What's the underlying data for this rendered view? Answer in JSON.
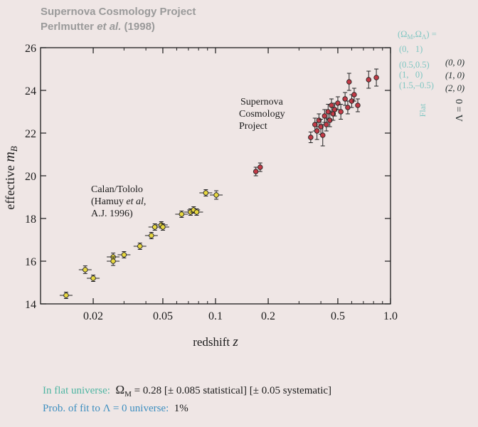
{
  "header": {
    "title": "Supernova Cosmology Project",
    "subtitle_prefix": "Perlmutter ",
    "subtitle_italic": "et al.",
    "subtitle_suffix": " (1998)"
  },
  "colors": {
    "flat": "#5fb9a6",
    "lambda_zero": "#1f4a4a",
    "scp_points": "#c23a46",
    "calan_points": "#e8d840",
    "frame": "#1b1b1b"
  },
  "chart_data": {
    "type": "scatter",
    "x_scale": "log",
    "xlabel_text": "redshift",
    "xlabel_symbol": "z",
    "ylabel_text": "effective",
    "ylabel_symbol": "m",
    "ylabel_sub": "B",
    "xlim": [
      0.01,
      1.0
    ],
    "ylim": [
      14,
      26
    ],
    "xticks": [
      {
        "v": 0.02,
        "label": "0.02"
      },
      {
        "v": 0.05,
        "label": "0.05"
      },
      {
        "v": 0.1,
        "label": "0.1"
      },
      {
        "v": 0.2,
        "label": "0.2"
      },
      {
        "v": 0.5,
        "label": "0.5"
      },
      {
        "v": 1.0,
        "label": "1.0"
      }
    ],
    "yticks": [
      14,
      16,
      18,
      20,
      22,
      24,
      26
    ],
    "annotations": {
      "scp": [
        "Supernova",
        "Cosmology",
        "Project"
      ],
      "calan": [
        "Calan/Tololo",
        "(Hamuy ",
        "et al",
        ",",
        "A.J. 1996)"
      ]
    },
    "legend": {
      "header": "(Ω",
      "header_sub1": "M",
      "header_sep": ",Ω",
      "header_sub2": "Λ",
      "header_end": ") =",
      "flat_label": "Flat",
      "lambda_label": "Λ = 0",
      "flat_models": [
        "(0,   1)",
        "(0.5,0.5)",
        "(1,   0)",
        "(1.5,–0.5)"
      ],
      "lambda_models": [
        "(0, 0)",
        "(1, 0)",
        "(2, 0)"
      ]
    },
    "series": [
      {
        "name": "Calan/Tololo",
        "points": [
          {
            "z": 0.014,
            "m": 14.4,
            "err": 0.15
          },
          {
            "z": 0.018,
            "m": 15.6,
            "err": 0.18
          },
          {
            "z": 0.02,
            "m": 15.2,
            "err": 0.15
          },
          {
            "z": 0.026,
            "m": 16.2,
            "err": 0.18
          },
          {
            "z": 0.026,
            "m": 16.0,
            "err": 0.2
          },
          {
            "z": 0.03,
            "m": 16.3,
            "err": 0.15
          },
          {
            "z": 0.037,
            "m": 16.7,
            "err": 0.15
          },
          {
            "z": 0.043,
            "m": 17.2,
            "err": 0.15
          },
          {
            "z": 0.045,
            "m": 17.6,
            "err": 0.15
          },
          {
            "z": 0.049,
            "m": 17.7,
            "err": 0.15
          },
          {
            "z": 0.05,
            "m": 17.6,
            "err": 0.15
          },
          {
            "z": 0.064,
            "m": 18.2,
            "err": 0.15
          },
          {
            "z": 0.072,
            "m": 18.3,
            "err": 0.15
          },
          {
            "z": 0.075,
            "m": 18.4,
            "err": 0.15
          },
          {
            "z": 0.078,
            "m": 18.3,
            "err": 0.15
          },
          {
            "z": 0.088,
            "m": 19.2,
            "err": 0.15
          },
          {
            "z": 0.101,
            "m": 19.1,
            "err": 0.2
          }
        ]
      },
      {
        "name": "Supernova Cosmology Project",
        "points": [
          {
            "z": 0.17,
            "m": 20.2,
            "err": 0.2
          },
          {
            "z": 0.18,
            "m": 20.4,
            "err": 0.2
          },
          {
            "z": 0.35,
            "m": 21.8,
            "err": 0.25
          },
          {
            "z": 0.37,
            "m": 22.4,
            "err": 0.3
          },
          {
            "z": 0.38,
            "m": 22.1,
            "err": 0.4
          },
          {
            "z": 0.39,
            "m": 22.6,
            "err": 0.3
          },
          {
            "z": 0.4,
            "m": 22.3,
            "err": 0.35
          },
          {
            "z": 0.41,
            "m": 21.9,
            "err": 0.5
          },
          {
            "z": 0.42,
            "m": 22.8,
            "err": 0.3
          },
          {
            "z": 0.43,
            "m": 22.4,
            "err": 0.3
          },
          {
            "z": 0.44,
            "m": 23.0,
            "err": 0.35
          },
          {
            "z": 0.45,
            "m": 22.6,
            "err": 0.3
          },
          {
            "z": 0.46,
            "m": 23.3,
            "err": 0.3
          },
          {
            "z": 0.47,
            "m": 22.9,
            "err": 0.3
          },
          {
            "z": 0.48,
            "m": 23.1,
            "err": 0.3
          },
          {
            "z": 0.5,
            "m": 23.4,
            "err": 0.3
          },
          {
            "z": 0.52,
            "m": 23.0,
            "err": 0.35
          },
          {
            "z": 0.55,
            "m": 23.6,
            "err": 0.3
          },
          {
            "z": 0.57,
            "m": 23.2,
            "err": 0.3
          },
          {
            "z": 0.58,
            "m": 24.4,
            "err": 0.4
          },
          {
            "z": 0.6,
            "m": 23.5,
            "err": 0.3
          },
          {
            "z": 0.62,
            "m": 23.8,
            "err": 0.3
          },
          {
            "z": 0.65,
            "m": 23.3,
            "err": 0.3
          },
          {
            "z": 0.75,
            "m": 24.5,
            "err": 0.4
          },
          {
            "z": 0.83,
            "m": 24.6,
            "err": 0.4
          }
        ]
      }
    ],
    "models": [
      {
        "kind": "flat",
        "om": 0.0,
        "ol": 1.0
      },
      {
        "kind": "flat",
        "om": 0.5,
        "ol": 0.5
      },
      {
        "kind": "flat",
        "om": 1.0,
        "ol": 0.0
      },
      {
        "kind": "flat",
        "om": 1.5,
        "ol": -0.5
      },
      {
        "kind": "lambda0",
        "om": 0.0,
        "ol": 0.0
      },
      {
        "kind": "lambda0",
        "om": 1.0,
        "ol": 0.0
      },
      {
        "kind": "lambda0",
        "om": 2.0,
        "ol": 0.0
      }
    ]
  },
  "stats": {
    "flat_prefix": "In flat universe:",
    "omega_symbol": "Ω",
    "omega_sub": "M",
    "flat_value": "= 0.28 [± 0.085 statistical] [± 0.05 systematic]",
    "prob_prefix": "Prob. of fit to Λ = 0 universe:",
    "prob_value": "1%"
  }
}
